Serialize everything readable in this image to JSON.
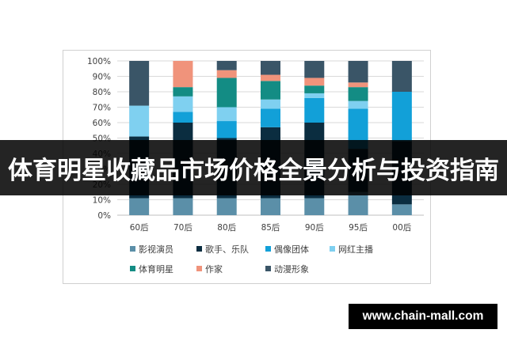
{
  "banner_title": "体育明星收藏品市场价格全景分析与投资指南",
  "watermark": "www.chain-mall.com",
  "chart_data": {
    "type": "bar",
    "stacked": true,
    "normalized_percent": true,
    "categories": [
      "60后",
      "70后",
      "80后",
      "85后",
      "90后",
      "95后",
      "00后"
    ],
    "y_ticks": [
      "0%",
      "10%",
      "20%",
      "30%",
      "40%",
      "50%",
      "60%",
      "70%",
      "80%",
      "90%",
      "100%"
    ],
    "ylim": [
      0,
      100
    ],
    "grid": true,
    "legend_position": "bottom",
    "series": [
      {
        "name": "影视演员",
        "color": "#5b8fa8",
        "values": [
          11,
          11,
          11,
          11,
          11,
          15,
          7
        ]
      },
      {
        "name": "歌手、乐队",
        "color": "#0b2d40",
        "values": [
          40,
          49,
          39,
          46,
          49,
          28,
          41
        ]
      },
      {
        "name": "偶像团体",
        "color": "#12a0d8",
        "values": [
          0,
          7,
          11,
          12,
          16,
          26,
          32
        ]
      },
      {
        "name": "网红主播",
        "color": "#7fd0f0",
        "values": [
          20,
          10,
          9,
          6,
          3,
          5,
          0
        ]
      },
      {
        "name": "体育明星",
        "color": "#138c84",
        "values": [
          0,
          6,
          19,
          12,
          5,
          9,
          0
        ]
      },
      {
        "name": "作家",
        "color": "#f0937b",
        "values": [
          0,
          17,
          5,
          4,
          5,
          3,
          0
        ]
      },
      {
        "name": "动漫形象",
        "color": "#3a5567",
        "values": [
          29,
          0,
          6,
          9,
          11,
          14,
          20
        ]
      }
    ]
  }
}
